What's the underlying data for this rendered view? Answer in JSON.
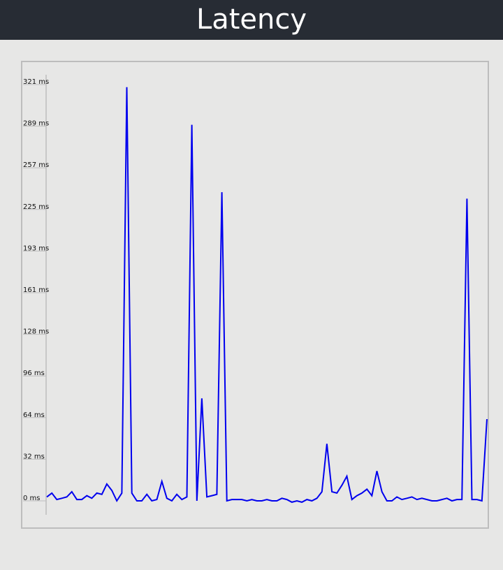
{
  "header": {
    "title": "Latency"
  },
  "colors": {
    "header_bg": "#272c34",
    "page_bg": "#e7e7e6",
    "line": "#0000ee",
    "axis": "#bdbdbd"
  },
  "chart_data": {
    "type": "line",
    "title": "Latency",
    "xlabel": "",
    "ylabel": "",
    "ylim": [
      0,
      321
    ],
    "grid": false,
    "y_ticks": [
      "0 ms",
      "32 ms",
      "64 ms",
      "96 ms",
      "128 ms",
      "161 ms",
      "193 ms",
      "225 ms",
      "257 ms",
      "289 ms",
      "321 ms"
    ],
    "series": [
      {
        "values": [
          3,
          6,
          1,
          2,
          3,
          7,
          1,
          1,
          4,
          2,
          6,
          5,
          13,
          8,
          0,
          6,
          319,
          6,
          0,
          0,
          5,
          0,
          1,
          15,
          2,
          0,
          5,
          1,
          3,
          290,
          0,
          79,
          3,
          4,
          5,
          238,
          0,
          1,
          1,
          1,
          0,
          1,
          0,
          0,
          1,
          0,
          0,
          2,
          1,
          -1,
          0,
          -1,
          1,
          0,
          2,
          7,
          44,
          7,
          6,
          12,
          19,
          1,
          4,
          6,
          9,
          4,
          23,
          7,
          0,
          0,
          3,
          1,
          2,
          3,
          1,
          2,
          1,
          0,
          0,
          1,
          2,
          0,
          1,
          1,
          233,
          1,
          1,
          0,
          63
        ]
      }
    ]
  }
}
